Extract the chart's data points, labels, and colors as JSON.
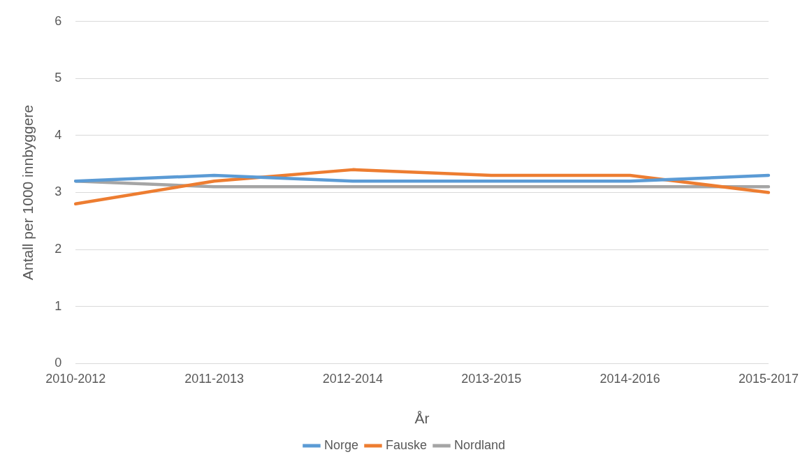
{
  "chart_data": {
    "type": "line",
    "xlabel": "År",
    "ylabel": "Antall per 1000 innbyggere",
    "categories": [
      "2010-2012",
      "2011-2013",
      "2012-2014",
      "2013-2015",
      "2014-2016",
      "2015-2017"
    ],
    "series": [
      {
        "name": "Norge",
        "color": "#5b9bd5",
        "values": [
          3.2,
          3.3,
          3.2,
          3.2,
          3.2,
          3.3
        ]
      },
      {
        "name": "Fauske",
        "color": "#ed7d31",
        "values": [
          2.8,
          3.2,
          3.4,
          3.3,
          3.3,
          3.0
        ]
      },
      {
        "name": "Nordland",
        "color": "#a5a5a5",
        "values": [
          3.2,
          3.1,
          3.1,
          3.1,
          3.1,
          3.1
        ]
      }
    ],
    "ylim": [
      0,
      6
    ],
    "yticks": [
      0,
      1,
      2,
      3,
      4,
      5,
      6
    ],
    "grid": "y",
    "legend": "bottom",
    "marker": "none",
    "line_style": "solid"
  }
}
